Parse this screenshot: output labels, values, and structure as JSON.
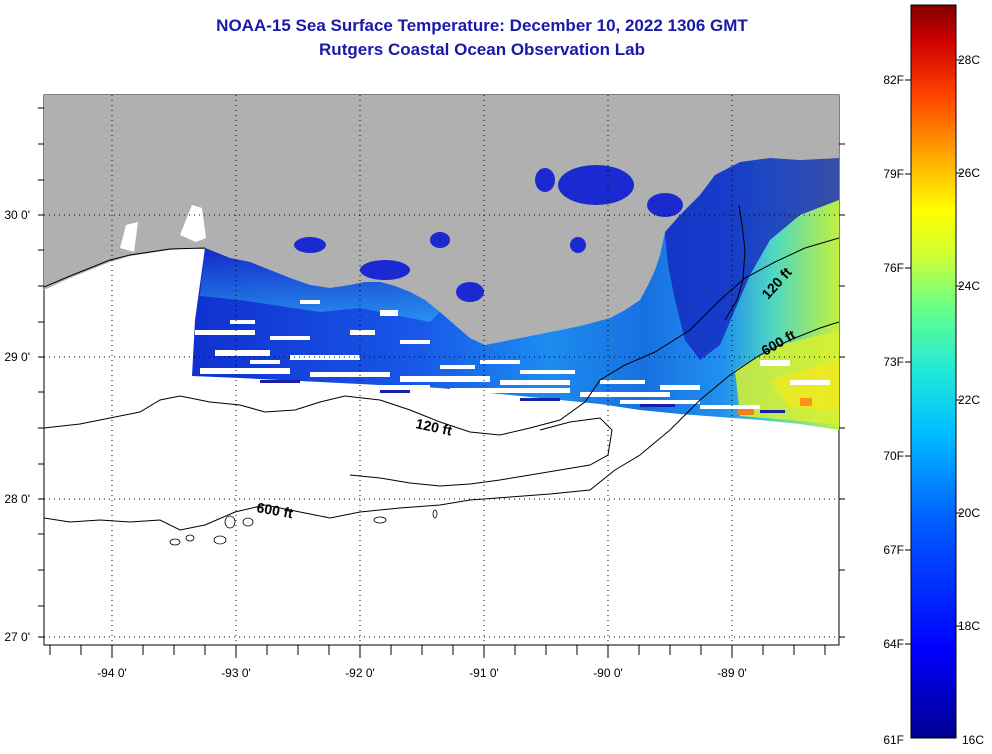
{
  "title": {
    "line1": "NOAA-15 Sea Surface Temperature:  December 10, 2022 1306 GMT",
    "line2": "Rutgers Coastal Ocean Observation Lab"
  },
  "map": {
    "lat_labels": [
      "30 0'",
      "29 0'",
      "28 0'",
      "27 0'"
    ],
    "lon_labels": [
      "-94 0'",
      "-93 0'",
      "-92 0'",
      "-91 0'",
      "-90 0'",
      "-89 0'"
    ],
    "contour_labels": {
      "shelf_120_west": "120 ft",
      "shelf_600_west": "600 ft",
      "shelf_120_east": "120 ft",
      "shelf_600_east": "600 ft"
    },
    "colors": {
      "land": "#b0b0b0",
      "contour": "#000000",
      "grid": "#000000"
    }
  },
  "colorbar": {
    "fahrenheit": [
      "82F",
      "79F",
      "76F",
      "73F",
      "70F",
      "67F",
      "64F",
      "61F"
    ],
    "celsius": [
      "28C",
      "26C",
      "24C",
      "22C",
      "20C",
      "18C",
      "16C"
    ],
    "min_c": 16,
    "max_c": 29
  }
}
